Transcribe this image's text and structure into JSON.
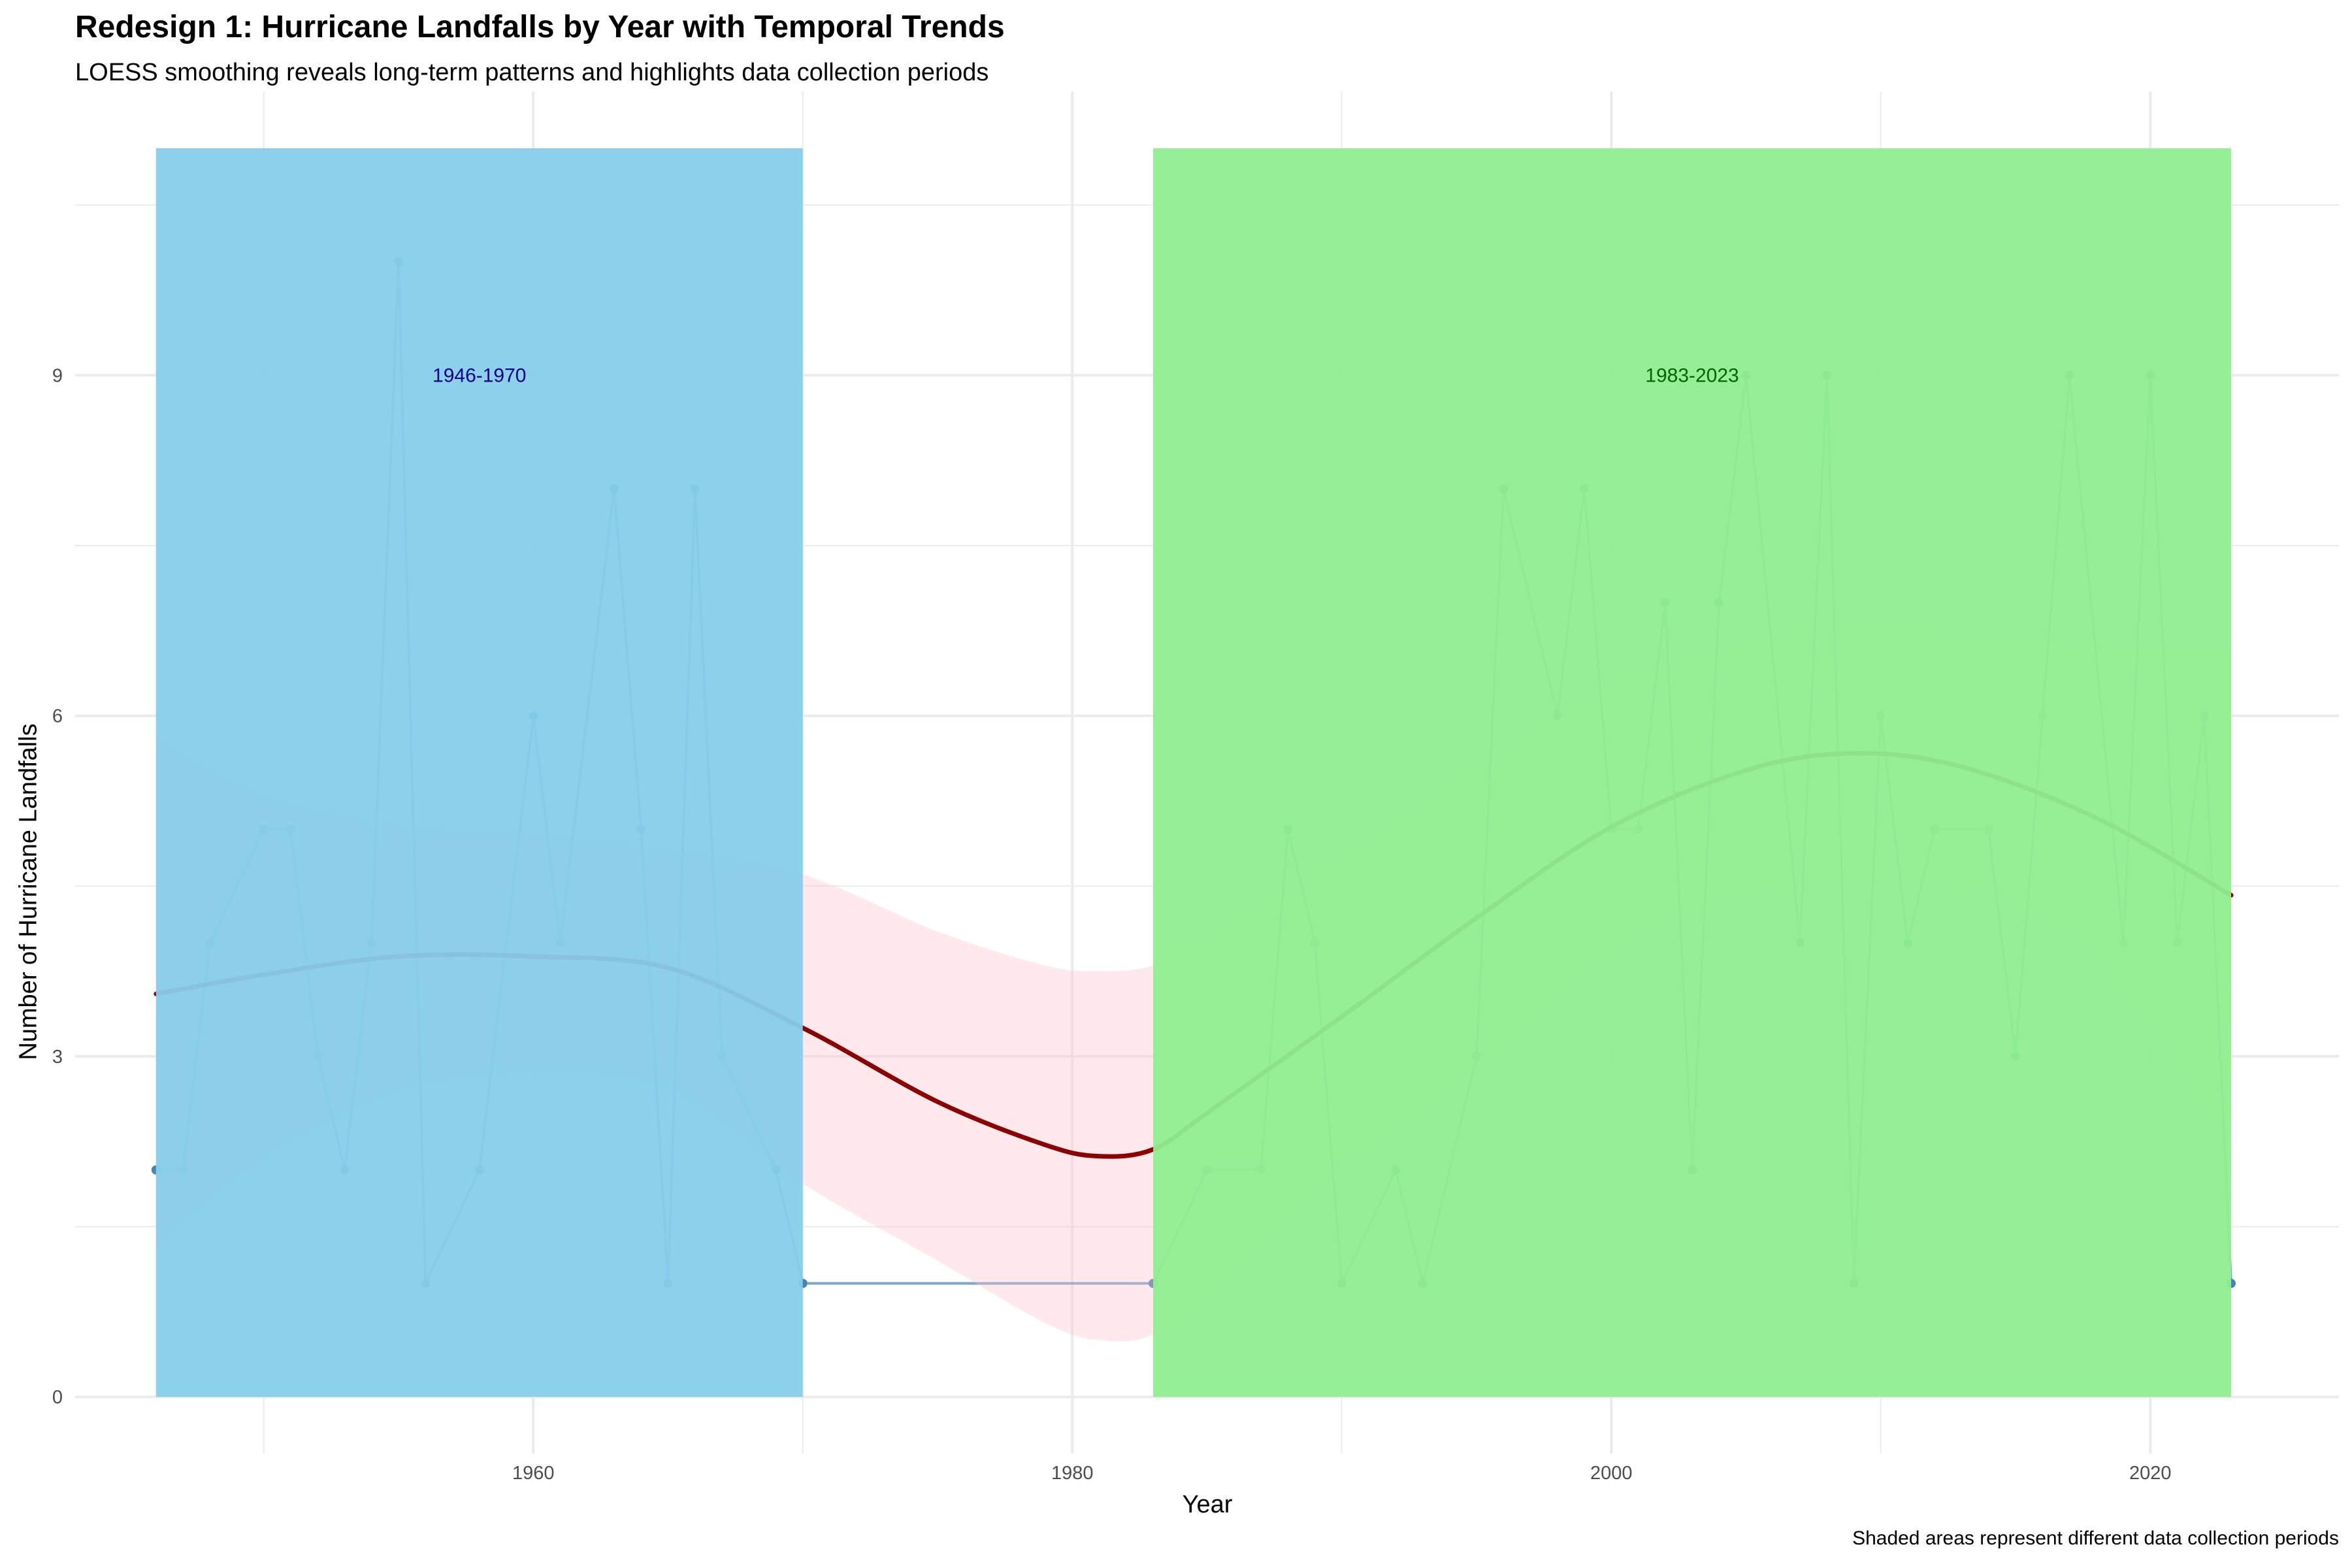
{
  "header": {
    "title": "Redesign 1: Hurricane Landfalls by Year with Temporal Trends",
    "subtitle": "LOESS smoothing reveals long-term patterns and highlights data collection periods"
  },
  "footer": {
    "caption": "Shaded areas represent different data collection periods"
  },
  "colors": {
    "period1_fill": "#87CEEB",
    "period2_fill": "#90EE90",
    "point_color": "#4682B4",
    "line_color": "#4682B4",
    "smooth_color": "#8B0000",
    "ribbon_color": "#FFC0CB",
    "grid_color": "#EBEBEB",
    "label1_color": "#00008B",
    "label2_color": "#006400"
  },
  "chart_data": {
    "type": "line",
    "title": "Redesign 1: Hurricane Landfalls by Year with Temporal Trends",
    "subtitle": "LOESS smoothing reveals long-term patterns and highlights data collection periods",
    "xlabel": "Year",
    "ylabel": "Number of Hurricane Landfalls",
    "xlim": [
      1943,
      2027
    ],
    "ylim": [
      -0.5,
      11.5
    ],
    "x_ticks": [
      1960,
      1980,
      2000,
      2020
    ],
    "y_ticks": [
      0,
      3,
      6,
      9
    ],
    "grid": true,
    "series": [
      {
        "points": [
          [
            1946,
            2
          ],
          [
            1947,
            2
          ],
          [
            1948,
            4
          ],
          [
            1950,
            5
          ],
          [
            1951,
            5
          ],
          [
            1952,
            3
          ],
          [
            1953,
            2
          ],
          [
            1954,
            4
          ],
          [
            1955,
            10
          ],
          [
            1956,
            1
          ],
          [
            1958,
            2
          ],
          [
            1960,
            6
          ],
          [
            1961,
            4
          ],
          [
            1963,
            8
          ],
          [
            1964,
            5
          ],
          [
            1965,
            1
          ],
          [
            1966,
            8
          ],
          [
            1967,
            3
          ],
          [
            1969,
            2
          ],
          [
            1970,
            1
          ],
          [
            1983,
            1
          ],
          [
            1985,
            2
          ],
          [
            1987,
            2
          ],
          [
            1988,
            5
          ],
          [
            1989,
            4
          ],
          [
            1990,
            1
          ],
          [
            1992,
            2
          ],
          [
            1993,
            1
          ],
          [
            1995,
            3
          ],
          [
            1996,
            8
          ],
          [
            1998,
            6
          ],
          [
            1999,
            8
          ],
          [
            2000,
            5
          ],
          [
            2001,
            5
          ],
          [
            2002,
            7
          ],
          [
            2003,
            2
          ],
          [
            2004,
            7
          ],
          [
            2005,
            9
          ],
          [
            2007,
            4
          ],
          [
            2008,
            9
          ],
          [
            2009,
            1
          ],
          [
            2010,
            6
          ],
          [
            2011,
            4
          ],
          [
            2012,
            5
          ],
          [
            2014,
            5
          ],
          [
            2015,
            3
          ],
          [
            2016,
            6
          ],
          [
            2017,
            9
          ],
          [
            2019,
            4
          ],
          [
            2020,
            9
          ],
          [
            2021,
            4
          ],
          [
            2022,
            6
          ],
          [
            2023,
            1
          ]
        ]
      }
    ],
    "smooth": {
      "method": "LOESS",
      "points": [
        [
          1946,
          3.55,
          1.35,
          5.8
        ],
        [
          1950,
          3.72,
          2.1,
          5.3
        ],
        [
          1955,
          3.88,
          2.7,
          5.05
        ],
        [
          1960,
          3.88,
          2.85,
          4.95
        ],
        [
          1965,
          3.78,
          2.72,
          4.82
        ],
        [
          1970,
          3.25,
          1.88,
          4.6
        ],
        [
          1975,
          2.6,
          1.2,
          4.1
        ],
        [
          1979,
          2.22,
          0.65,
          3.8
        ],
        [
          1981,
          2.12,
          0.5,
          3.75
        ],
        [
          1983,
          2.18,
          0.55,
          3.8
        ],
        [
          1985,
          2.5,
          0.95,
          4.05
        ],
        [
          1990,
          3.35,
          2.05,
          4.75
        ],
        [
          1995,
          4.22,
          2.95,
          5.5
        ],
        [
          2000,
          5.02,
          3.95,
          6.25
        ],
        [
          2005,
          5.52,
          4.4,
          6.65
        ],
        [
          2009,
          5.67,
          4.58,
          6.8
        ],
        [
          2013,
          5.55,
          4.5,
          6.72
        ],
        [
          2018,
          5.1,
          3.9,
          6.62
        ],
        [
          2023,
          4.42,
          2.2,
          6.65
        ]
      ]
    },
    "periods": [
      {
        "start": 1946,
        "end": 1970,
        "label": "1946-1970",
        "label_year": 1958,
        "label_y": 9
      },
      {
        "start": 1983,
        "end": 2023,
        "label": "1983-2023",
        "label_year": 2003,
        "label_y": 9
      }
    ],
    "caption": "Shaded areas represent different data collection periods"
  }
}
